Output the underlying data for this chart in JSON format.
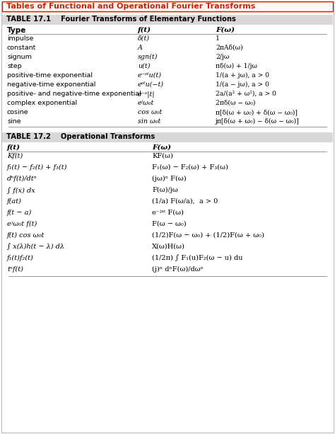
{
  "title_text": "Tables of Functional and Operational Fourier Transforms",
  "title_color": "#cc2200",
  "title_border": "#cc2200",
  "title_bg": "#fffafa",
  "bg_color": "#ffffff",
  "table1_header": "TABLE 17.1    Fourier Transforms of Elementary Functions",
  "table2_header": "TABLE 17.2    Operational Transforms",
  "header_bg": "#d8d8d8",
  "type_entries": [
    "impulse",
    "constant",
    "signum",
    "step",
    "positive-time exponential",
    "negative-time exponential",
    "positive- and negative-time exponential",
    "complex exponential",
    "cosine",
    "sine"
  ],
  "t1_ft": [
    "δ(t)",
    "A",
    "sgn(t)",
    "u(t)",
    "e⁻ᵃᵗu(t)",
    "eᵃᵗu(−t)",
    "e⁻ᵃ|t|",
    "eʲω₀t",
    "cos ω₀t",
    "sin ω₀t"
  ],
  "t1_Fw": [
    "1",
    "2πAδ(ω)",
    "2/jω",
    "πδ(ω) + 1/jω",
    "1/(a + jω), a > 0",
    "1/(a − jω), a > 0",
    "2a/(a² + ω²), a > 0",
    "2πδ(ω − ω₀)",
    "π[δ(ω + ω₀) + δ(ω − ω₀)]",
    "jπ[δ(ω + ω₀) − δ(ω − ω₀)]"
  ],
  "t2_ft": [
    "Kf(t)",
    "f₁(t) − f₂(t) + f₃(t)",
    "dⁿf(t)/dtⁿ",
    "∫ f(x) dx",
    "f(at)",
    "f(t − a)",
    "eʲω₀t f(t)",
    "f(t) cos ω₀t",
    "∫ x(λ)h(t − λ) dλ",
    "f₁(t)f₂(t)",
    "tⁿf(t)"
  ],
  "t2_Fw": [
    "KF(ω)",
    "F₁(ω) − F₂(ω) + F₃(ω)",
    "(jω)ⁿ F(ω)",
    "F(ω)/jω",
    "(1/a) F(ω/a),  a > 0",
    "e⁻ʲᵃᵗ F(ω)",
    "F(ω − ω₀)",
    "(1/2)F(ω − ω₀) + (1/2)F(ω + ω₀)",
    "X(ω)H(ω)",
    "(1/2π) ∫ F₁(u)F₂(ω − u) du",
    "(j)ⁿ dⁿF(ω)/dωⁿ"
  ]
}
